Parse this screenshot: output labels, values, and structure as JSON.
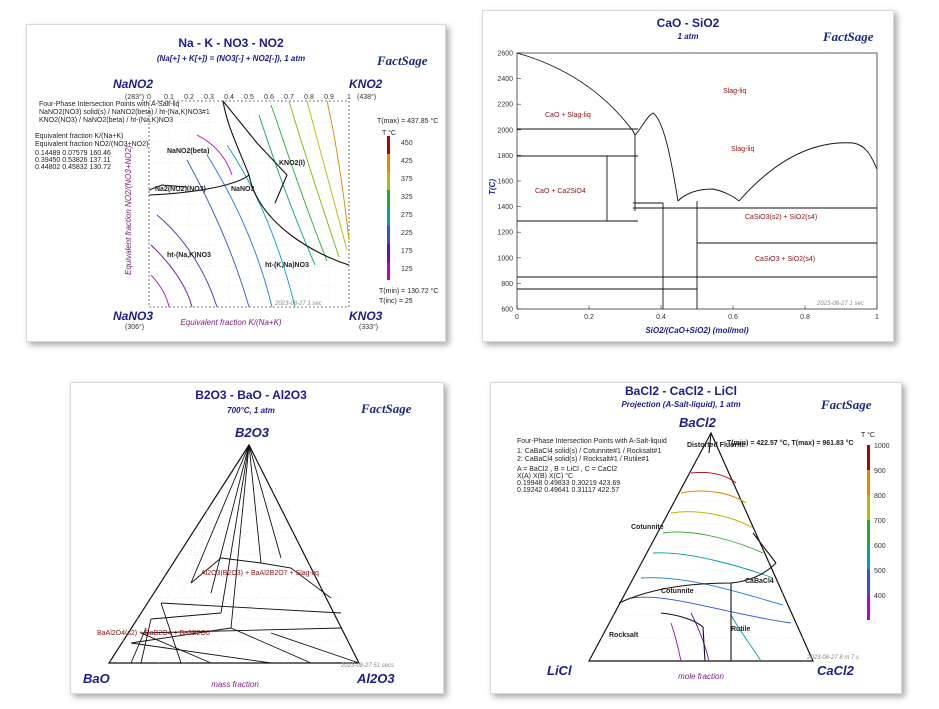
{
  "brand": {
    "logo_text": "FactSage"
  },
  "panels": {
    "p1": {
      "title": "Na - K - NO3 - NO2",
      "subtitle": "(Na[+] + K[+]) = (NO3[-] + NO2[-]), 1 atm",
      "corners": {
        "tl": "NaNO2",
        "tr": "KNO2",
        "bl": "NaNO3",
        "br": "KNO3"
      },
      "corner_temps": {
        "tl": "(283°)",
        "tr": "(438°)",
        "bl": "(306°)",
        "br": "(333°)"
      },
      "xlabel": "Equivalent fraction  K/(Na+K)",
      "ylabel": "Equivalent fraction  NO2/(NO3+NO2)",
      "tmax": "T(max) = 437.85 °C",
      "tmin": "T(min) = 130.72 °C",
      "tinc": "T(inc) =  25",
      "legend_unit": "T °C",
      "legend_ticks": [
        "450",
        "425",
        "375",
        "325",
        "275",
        "225",
        "175",
        "125"
      ],
      "legend_colors": [
        "#b30000",
        "#e08a00",
        "#b8b800",
        "#2aa52a",
        "#00a0a0",
        "#3050d0",
        "#6a0dad",
        "#c000c0"
      ],
      "header_lines": [
        "Four-Phase Intersection Points with A-Salt-liq",
        "NaNO2(NO3) solid(s) / NaNO2(beta) / ht-(Na,K)NO3#1",
        "KNO2(NO3) / NaNO2(beta) / ht-(Na,K)NO3",
        "Equivalent fraction  K/(Na+K)",
        "Equivalent fraction  NO2/(NO3+NO2)"
      ],
      "points": [
        "0.14489  0.07579  160.46",
        "0.39450  0.53826  137.11",
        "0.44802  0.45832  130.72"
      ],
      "regions": [
        "NaNO2(beta)",
        "KNO2(I)",
        "Na2(NO2)(NO3)",
        "NaNO3",
        "ht-(Na,K)NO3",
        "ht-(K,Na)NO3"
      ],
      "stamp": "2023-08-27  1 sec",
      "ticks": [
        "0",
        "0.1",
        "0.2",
        "0.3",
        "0.4",
        "0.5",
        "0.6",
        "0.7",
        "0.8",
        "0.9",
        "1"
      ]
    },
    "p2": {
      "title": "CaO - SiO2",
      "subtitle": "1 atm",
      "ylabel": "T(C)",
      "xlabel": "SiO2/(CaO+SiO2) (mol/mol)",
      "regions": [
        "CaO + Slag-liq",
        "Slag-liq",
        "Slag-liq",
        "CaO + Ca2SiO4",
        "CaSiO3(s2) + SiO2(s4)",
        "CaSiO3 + SiO2(s4)"
      ],
      "stamp": "2023-08-27  1 sec"
    },
    "p3": {
      "title": "B2O3 - BaO - Al2O3",
      "subtitle": "700°C, 1 atm",
      "corners": {
        "top": "B2O3",
        "bl": "BaO",
        "br": "Al2O3"
      },
      "bottom_label": "mass fraction",
      "regions": [
        "Al2O3(B2O3) + BaAl2B2O7 + Slag-liq",
        "BaAl2O4(s2) + BaB2O4 + Ba3B2O6"
      ],
      "stamp": "2023-08-27  51 secs"
    },
    "p4": {
      "title": "BaCl2 - CaCl2 - LiCl",
      "subtitle": "Projection (A-Salt-liquid), 1 atm",
      "corners": {
        "top": "BaCl2",
        "bl": "LiCl",
        "br": "CaCl2"
      },
      "bottom_label": "mole fraction",
      "header_lines": [
        "Four-Phase Intersection Points with A-Salt-liquid",
        "1: CaBaCl4  solid(s) / Cotunnite#1 / Rocksalt#1",
        "2: CaBaCl4  solid(s) / Rocksalt#1 / Rutile#1",
        "A = BaCl2 ,  B = LiCl ,  C = CaCl2",
        "X(A)      X(B)      X(C)      °C",
        "0.19948  0.49833  0.30219   423.69",
        "0.19242  0.49641  0.31117   422.57"
      ],
      "tmin_max": "T(min) = 422.57 °C, T(max) = 961.83 °C",
      "legend_unit": "T °C",
      "legend_ticks": [
        "1000",
        "900",
        "800",
        "700",
        "600",
        "500",
        "400"
      ],
      "regions": [
        "Distorted Fluorite",
        "Cotunnite",
        "CaBaCl4",
        "Cotunnite",
        "Rocksalt",
        "Rutile"
      ],
      "stamp": "2023-08-27  8 m 7 s"
    }
  }
}
